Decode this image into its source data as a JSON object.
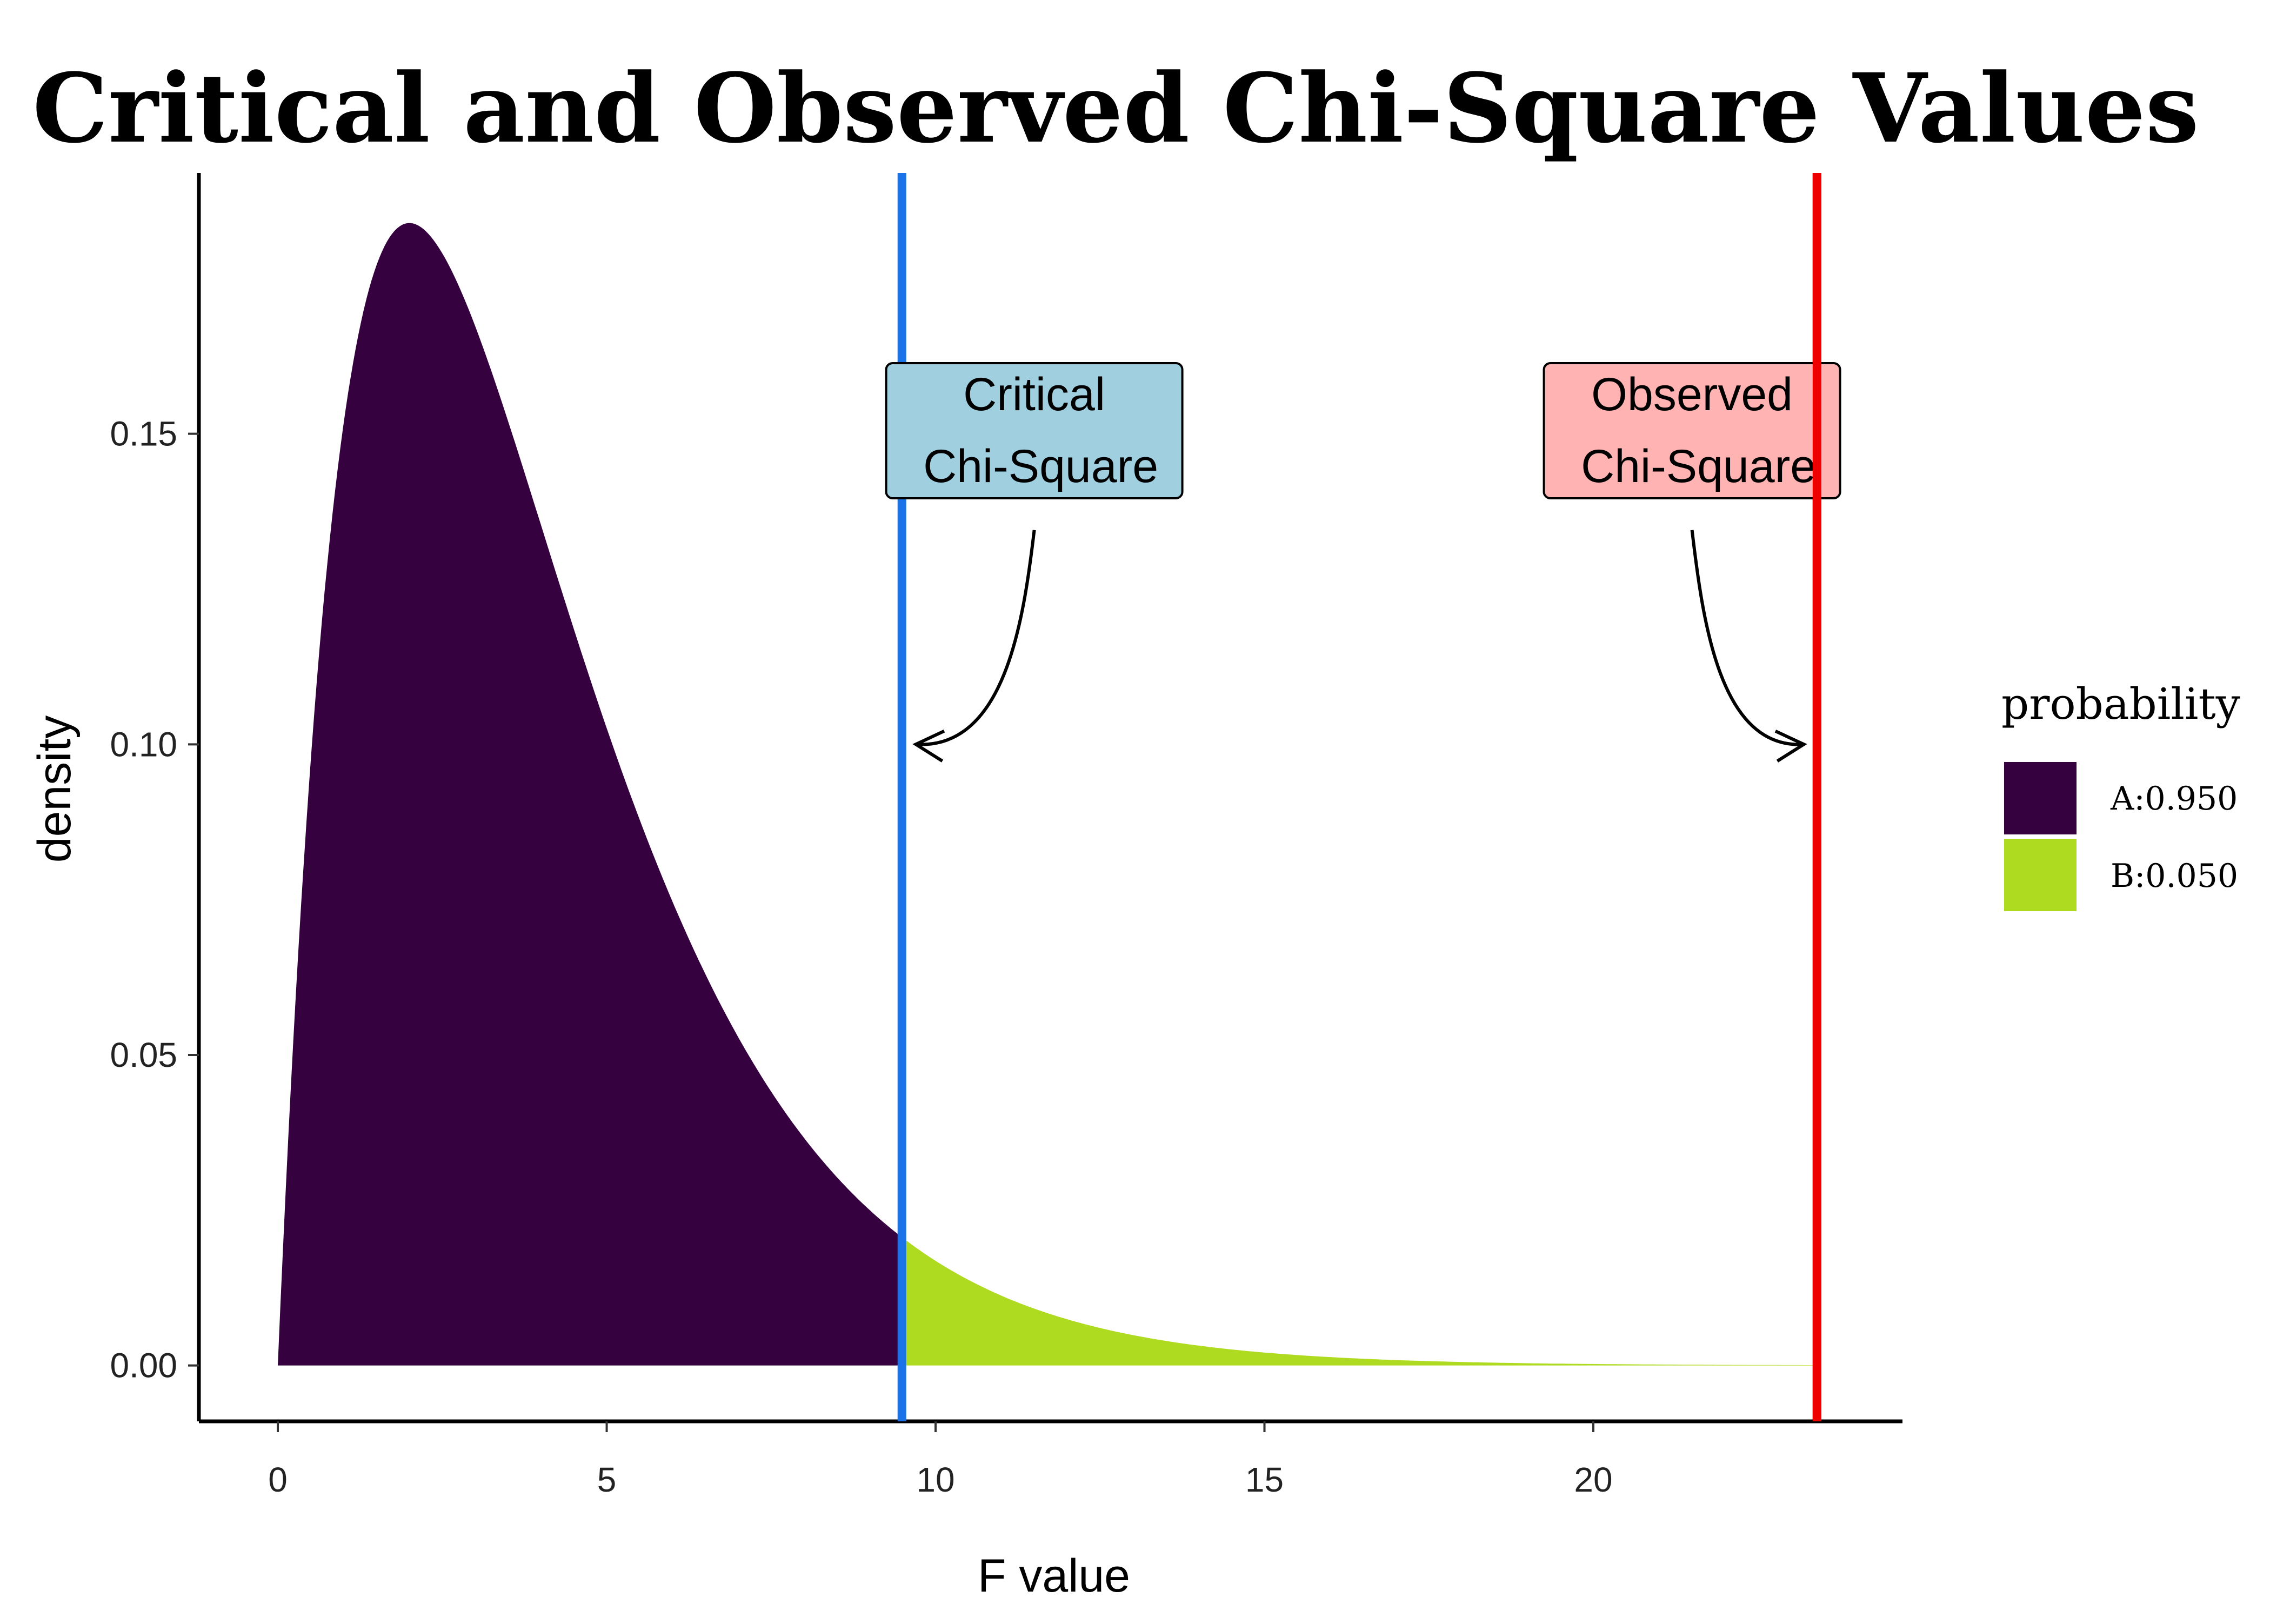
{
  "chart_data": {
    "type": "area",
    "title": "Critical and Observed Chi-Square Values",
    "xlabel": "F value",
    "ylabel": "density",
    "xlim": [
      -1.2,
      24.7
    ],
    "ylim": [
      -0.009,
      0.192
    ],
    "x_ticks": [
      0,
      5,
      10,
      15,
      20
    ],
    "y_ticks": [
      0.0,
      0.05,
      0.1,
      0.15
    ],
    "x_tick_labels": [
      "0",
      "5",
      "10",
      "15",
      "20"
    ],
    "y_tick_labels": [
      "0.00",
      "0.05",
      "0.10",
      "0.15"
    ],
    "distribution": {
      "family": "chi-square",
      "df": 4
    },
    "x_range": [
      0,
      23.4
    ],
    "critical_value": 9.488,
    "observed_value": 23.4,
    "series": [
      {
        "name": "A:0.950",
        "from": 0,
        "to": 9.488,
        "color": "#35013f"
      },
      {
        "name": "B:0.050",
        "from": 9.488,
        "to": 23.4,
        "color": "#aedb1f"
      }
    ],
    "vlines": [
      {
        "x": 9.488,
        "color": "#1a73e8"
      },
      {
        "x": 23.4,
        "color": "#ee0000"
      }
    ],
    "annotations": [
      {
        "line1": "Critical",
        "line2": "Chi-Square",
        "fill": "#a0cfe0",
        "x": 11.5,
        "y": 0.1505,
        "arrow_from": [
          11.5,
          0.1345
        ],
        "arrow_to": [
          9.7,
          0.1
        ]
      },
      {
        "line1": "Observed",
        "line2": "Chi-Square",
        "fill": "#ffb3b3",
        "x": 21.5,
        "y": 0.1505,
        "arrow_from": [
          21.5,
          0.1345
        ],
        "arrow_to": [
          23.2,
          0.1
        ]
      }
    ],
    "legend": {
      "title": "probability",
      "placement": "right",
      "items": [
        {
          "label": "A:0.950",
          "color": "#35013f"
        },
        {
          "label": "B:0.050",
          "color": "#aedb1f"
        }
      ]
    },
    "grid": false
  }
}
